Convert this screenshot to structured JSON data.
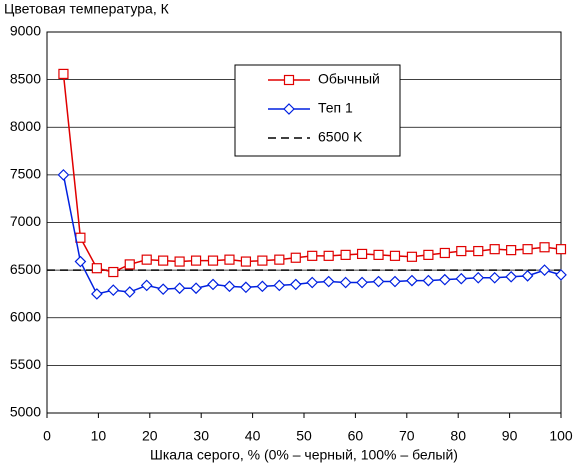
{
  "chart_data": {
    "type": "line",
    "title": "Цветовая температура, К",
    "x_label": "Шкала серого, % (0% – черный, 100% – белый)",
    "x": [
      3.2,
      6.5,
      9.7,
      12.9,
      16.1,
      19.4,
      22.6,
      25.8,
      29,
      32.3,
      35.5,
      38.7,
      41.9,
      45.2,
      48.4,
      51.6,
      54.8,
      58.1,
      61.3,
      64.5,
      67.7,
      71,
      74.2,
      77.4,
      80.6,
      83.9,
      87.1,
      90.3,
      93.5,
      96.8,
      100
    ],
    "series": [
      {
        "name": "Обычный",
        "color": "#e00000",
        "marker": "square",
        "values": [
          8560,
          6840,
          6520,
          6480,
          6560,
          6610,
          6600,
          6590,
          6600,
          6600,
          6610,
          6590,
          6600,
          6610,
          6630,
          6650,
          6650,
          6660,
          6670,
          6660,
          6650,
          6640,
          6660,
          6680,
          6700,
          6700,
          6720,
          6710,
          6720,
          6740,
          6720
        ]
      },
      {
        "name": "Теп 1",
        "color": "#0020e0",
        "marker": "diamond",
        "values": [
          7500,
          6590,
          6250,
          6290,
          6270,
          6340,
          6300,
          6310,
          6310,
          6350,
          6330,
          6320,
          6330,
          6340,
          6350,
          6370,
          6380,
          6370,
          6370,
          6380,
          6380,
          6390,
          6390,
          6400,
          6410,
          6420,
          6420,
          6430,
          6440,
          6500,
          6450
        ]
      }
    ],
    "reference": {
      "name": "6500 K",
      "value": 6500,
      "color": "#000000"
    },
    "xlim": [
      0,
      100
    ],
    "xticks": [
      0,
      10,
      20,
      30,
      40,
      50,
      60,
      70,
      80,
      90,
      100
    ],
    "ylim": [
      5000,
      9000
    ],
    "yticks": [
      5000,
      5500,
      6000,
      6500,
      7000,
      7500,
      8000,
      8500,
      9000
    ],
    "grid": true
  }
}
